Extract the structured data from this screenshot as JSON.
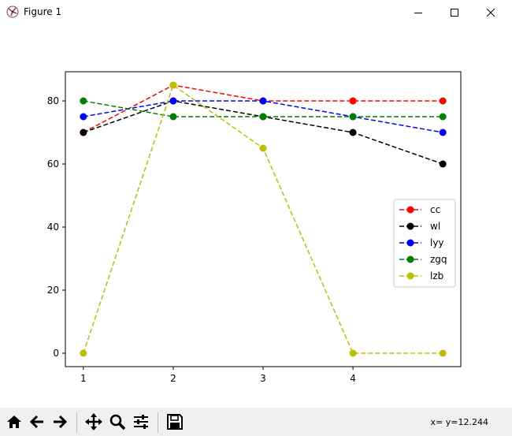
{
  "window": {
    "title": "Figure 1"
  },
  "toolbar": {
    "buttons": [
      "home-icon",
      "back-icon",
      "forward-icon",
      "pan-icon",
      "zoom-icon",
      "configure-subplots-icon",
      "save-icon"
    ],
    "coordinates": "x= y=12.244"
  },
  "chart_data": {
    "type": "line",
    "x": [
      1,
      2,
      3,
      4,
      5
    ],
    "xticks": [
      "1",
      "2",
      "3",
      "4"
    ],
    "yticks": [
      "0",
      "20",
      "40",
      "60",
      "80"
    ],
    "xlim": [
      0.8,
      5.2
    ],
    "ylim": [
      -4.25,
      89.25
    ],
    "line_style": "dashed",
    "marker": "circle",
    "legend_position": "center-right",
    "series": [
      {
        "name": "cc",
        "color": "#ff0000",
        "values": [
          70,
          85,
          80,
          80,
          80
        ]
      },
      {
        "name": "wl",
        "color": "#000000",
        "values": [
          70,
          80,
          75,
          70,
          60
        ]
      },
      {
        "name": "lyy",
        "color": "#0000ff",
        "values": [
          75,
          80,
          80,
          75,
          70
        ]
      },
      {
        "name": "zgq",
        "color": "#008000",
        "values": [
          80,
          75,
          75,
          75,
          75
        ]
      },
      {
        "name": "lzb",
        "color": "#bfbf00",
        "values": [
          0,
          85,
          65,
          0,
          0
        ]
      }
    ]
  }
}
